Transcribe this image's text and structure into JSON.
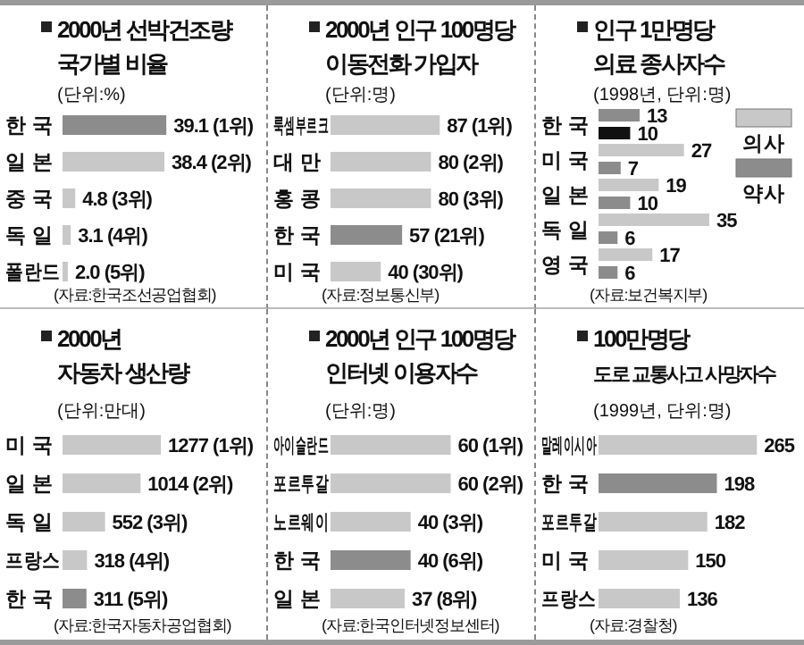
{
  "chart_data": [
    {
      "type": "bar",
      "orientation": "horizontal",
      "title": "2000년 선박건조량\n국가별 비율",
      "subtitle": "(단위:%)",
      "categories": [
        "한 국",
        "일 본",
        "중 국",
        "독 일",
        "폴란드"
      ],
      "values": [
        39.1,
        38.4,
        4.8,
        3.1,
        2.0
      ],
      "colors": [
        "#8c8c8c",
        "#c8c8c8",
        "#c8c8c8",
        "#c8c8c8",
        "#c8c8c8"
      ],
      "value_labels": [
        "39.1 (1위)",
        "38.4 (2위)",
        "4.8 (3위)",
        "3.1 (4위)",
        "2.0 (5위)"
      ],
      "annotations": [
        "(자료:한국조선공업협회)"
      ]
    },
    {
      "type": "bar",
      "orientation": "horizontal",
      "title": "2000년 인구 100명당\n이동전화 가입자",
      "subtitle": "(단위:명)",
      "categories": [
        "룩셈부르크",
        "대 만",
        "홍 콩",
        "한 국",
        "미 국"
      ],
      "values": [
        87,
        80,
        80,
        57,
        40
      ],
      "colors": [
        "#c8c8c8",
        "#c8c8c8",
        "#c8c8c8",
        "#8c8c8c",
        "#c8c8c8"
      ],
      "value_labels": [
        "87 (1위)",
        "80 (2위)",
        "80 (3위)",
        "57 (21위)",
        "40 (30위)"
      ],
      "annotations": [
        "(자료:정보통신부)"
      ]
    },
    {
      "type": "bar",
      "orientation": "horizontal",
      "title": "인구 1만명당\n의료 종사자수",
      "subtitle": "(1998년, 단위:명)",
      "categories": [
        "한 국",
        "미 국",
        "일 본",
        "독 일",
        "영 국"
      ],
      "legend": "right",
      "series": [
        {
          "name": "의사",
          "color": "#c8c8c8",
          "colors": [
            "#8c8c8c",
            "#c8c8c8",
            "#c8c8c8",
            "#c8c8c8",
            "#c8c8c8"
          ],
          "values": [
            13,
            27,
            19,
            35,
            17
          ],
          "value_labels": [
            "13",
            "27",
            "19",
            "35",
            "17"
          ]
        },
        {
          "name": "약사",
          "color": "#8c8c8c",
          "colors": [
            "#111111",
            "#8c8c8c",
            "#8c8c8c",
            "#8c8c8c",
            "#8c8c8c"
          ],
          "values": [
            10,
            7,
            10,
            6,
            6
          ],
          "value_labels": [
            "10",
            "7",
            "10",
            "6",
            "6"
          ]
        }
      ],
      "annotations": [
        "(자료:보건복지부)"
      ]
    },
    {
      "type": "bar",
      "orientation": "horizontal",
      "title": "2000년\n자동차 생산량",
      "subtitle": "(단위:만대)",
      "categories": [
        "미 국",
        "일 본",
        "독 일",
        "프랑스",
        "한 국"
      ],
      "values": [
        1277,
        1014,
        552,
        318,
        311
      ],
      "colors": [
        "#c8c8c8",
        "#c8c8c8",
        "#c8c8c8",
        "#c8c8c8",
        "#8c8c8c"
      ],
      "value_labels": [
        "1277 (1위)",
        "1014 (2위)",
        "552 (3위)",
        "318 (4위)",
        "311 (5위)"
      ],
      "annotations": [
        "(자료:한국자동차공업협회)"
      ]
    },
    {
      "type": "bar",
      "orientation": "horizontal",
      "title": "2000년 인구 100명당\n인터넷 이용자수",
      "subtitle": "(단위:명)",
      "categories": [
        "아이슬란드",
        "포르투갈",
        "노르웨이",
        "한 국",
        "일 본"
      ],
      "values": [
        60,
        60,
        40,
        40,
        37
      ],
      "colors": [
        "#c8c8c8",
        "#c8c8c8",
        "#c8c8c8",
        "#8c8c8c",
        "#c8c8c8"
      ],
      "value_labels": [
        "60 (1위)",
        "60 (2위)",
        "40 (3위)",
        "40 (6위)",
        "37 (8위)"
      ],
      "annotations": [
        "(자료:한국인터넷정보센터)"
      ]
    },
    {
      "type": "bar",
      "orientation": "horizontal",
      "title": "100만명당\n도로 교통사고 사망자수",
      "subtitle": "(1999년, 단위:명)",
      "categories": [
        "말레이시아",
        "한 국",
        "포르투갈",
        "미 국",
        "프랑스"
      ],
      "values": [
        265,
        198,
        182,
        150,
        136
      ],
      "colors": [
        "#c8c8c8",
        "#8c8c8c",
        "#c8c8c8",
        "#c8c8c8",
        "#c8c8c8"
      ],
      "value_labels": [
        "265",
        "198",
        "182",
        "150",
        "136"
      ],
      "annotations": [
        "(자료:경찰청)"
      ]
    }
  ]
}
